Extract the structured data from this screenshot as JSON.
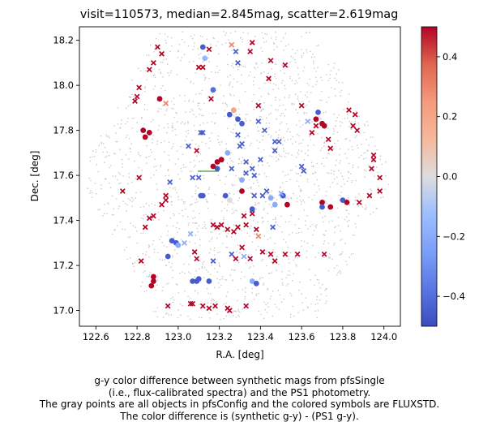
{
  "chart_data": {
    "type": "scatter",
    "title": "visit=110573, median=2.845mag, scatter=2.619mag",
    "xlabel": "R.A. [deg]",
    "ylabel": "Dec. [deg]",
    "xlim": [
      122.52,
      124.08
    ],
    "ylim": [
      16.93,
      18.26
    ],
    "xticks": [
      122.6,
      122.8,
      123.0,
      123.2,
      123.4,
      123.6,
      123.8,
      124.0
    ],
    "xtick_labels": [
      "122.6",
      "122.8",
      "123.0",
      "123.2",
      "123.4",
      "123.6",
      "123.8",
      "124.0"
    ],
    "yticks": [
      17.0,
      17.2,
      17.4,
      17.6,
      17.8,
      18.0,
      18.2
    ],
    "ytick_labels": [
      "17.0",
      "17.2",
      "17.4",
      "17.6",
      "17.8",
      "18.0",
      "18.2"
    ],
    "grid": false,
    "colorbar": {
      "cmap": "coolwarm",
      "vmin": -0.5,
      "vmax": 0.5,
      "ticks": [
        -0.4,
        -0.2,
        0.0,
        0.2,
        0.4
      ],
      "tick_labels": [
        "−0.4",
        "−0.2",
        "0.0",
        "0.2",
        "0.4"
      ]
    },
    "background_points": {
      "description_shown": "gray points = all objects in pfsConfig",
      "color": "#c8c8c8",
      "field_center": [
        123.3,
        17.6
      ],
      "field_hex_vertices": [
        [
          122.52,
          17.6
        ],
        [
          122.9,
          18.24
        ],
        [
          123.68,
          18.24
        ],
        [
          124.06,
          17.6
        ],
        [
          123.68,
          16.96
        ],
        [
          122.9,
          16.96
        ]
      ]
    },
    "series": [
      {
        "marker": "circle",
        "points": [
          [
            123.12,
            18.17,
            -0.45
          ],
          [
            123.13,
            18.12,
            -0.15
          ],
          [
            123.17,
            17.98,
            -0.4
          ],
          [
            123.25,
            17.87,
            -0.45
          ],
          [
            123.27,
            17.89,
            0.2
          ],
          [
            123.29,
            17.85,
            -0.45
          ],
          [
            123.31,
            17.83,
            -0.45
          ],
          [
            122.91,
            17.94,
            0.5
          ],
          [
            122.83,
            17.8,
            0.5
          ],
          [
            122.86,
            17.79,
            0.5
          ],
          [
            122.84,
            17.77,
            0.5
          ],
          [
            123.21,
            17.67,
            0.5
          ],
          [
            123.24,
            17.7,
            -0.2
          ],
          [
            123.19,
            17.66,
            0.5
          ],
          [
            123.19,
            17.63,
            -0.45
          ],
          [
            123.17,
            17.64,
            0.5
          ],
          [
            123.11,
            17.51,
            -0.45
          ],
          [
            123.12,
            17.51,
            -0.45
          ],
          [
            123.23,
            17.51,
            -0.45
          ],
          [
            123.25,
            17.49,
            0.0
          ],
          [
            123.31,
            17.58,
            -0.2
          ],
          [
            123.31,
            17.53,
            0.5
          ],
          [
            123.36,
            17.45,
            -0.45
          ],
          [
            123.45,
            17.5,
            -0.2
          ],
          [
            123.47,
            17.47,
            -0.2
          ],
          [
            123.51,
            17.51,
            -0.45
          ],
          [
            123.53,
            17.47,
            0.5
          ],
          [
            123.68,
            17.88,
            -0.45
          ],
          [
            123.67,
            17.85,
            0.5
          ],
          [
            123.7,
            17.83,
            0.5
          ],
          [
            123.71,
            17.82,
            0.5
          ],
          [
            123.7,
            17.48,
            0.5
          ],
          [
            123.7,
            17.46,
            -0.45
          ],
          [
            123.74,
            17.46,
            0.5
          ],
          [
            123.8,
            17.49,
            -0.45
          ],
          [
            123.82,
            17.48,
            0.5
          ],
          [
            122.97,
            17.31,
            -0.45
          ],
          [
            122.99,
            17.3,
            -0.45
          ],
          [
            122.95,
            17.24,
            -0.45
          ],
          [
            123.0,
            17.29,
            -0.2
          ],
          [
            122.88,
            17.13,
            0.5
          ],
          [
            122.87,
            17.11,
            0.5
          ],
          [
            122.88,
            17.15,
            0.5
          ],
          [
            123.07,
            17.13,
            -0.45
          ],
          [
            123.09,
            17.13,
            -0.45
          ],
          [
            123.1,
            17.14,
            -0.45
          ],
          [
            123.15,
            17.13,
            -0.45
          ],
          [
            123.36,
            17.13,
            -0.2
          ],
          [
            123.38,
            17.12,
            -0.45
          ]
        ]
      },
      {
        "marker": "x",
        "points": [
          [
            123.26,
            18.18,
            0.3
          ],
          [
            123.28,
            18.15,
            -0.45
          ],
          [
            123.29,
            18.1,
            -0.45
          ],
          [
            123.15,
            18.16,
            0.5
          ],
          [
            122.9,
            18.17,
            0.5
          ],
          [
            122.92,
            18.14,
            0.5
          ],
          [
            122.88,
            18.1,
            0.5
          ],
          [
            122.86,
            18.07,
            0.5
          ],
          [
            122.81,
            17.99,
            0.5
          ],
          [
            122.8,
            17.95,
            0.5
          ],
          [
            122.79,
            17.93,
            0.5
          ],
          [
            122.94,
            17.92,
            0.3
          ],
          [
            123.1,
            18.08,
            0.5
          ],
          [
            123.12,
            18.08,
            0.5
          ],
          [
            123.16,
            17.94,
            0.5
          ],
          [
            123.11,
            17.79,
            -0.45
          ],
          [
            123.12,
            17.79,
            -0.45
          ],
          [
            123.09,
            17.71,
            0.5
          ],
          [
            123.05,
            17.73,
            -0.45
          ],
          [
            123.1,
            17.59,
            -0.45
          ],
          [
            123.07,
            17.59,
            -0.45
          ],
          [
            122.96,
            17.57,
            -0.45
          ],
          [
            122.81,
            17.59,
            0.5
          ],
          [
            122.73,
            17.53,
            0.5
          ],
          [
            123.36,
            18.19,
            0.5
          ],
          [
            123.35,
            18.15,
            0.5
          ],
          [
            123.45,
            18.11,
            0.5
          ],
          [
            123.52,
            18.09,
            0.5
          ],
          [
            123.44,
            18.03,
            0.5
          ],
          [
            123.39,
            17.91,
            0.5
          ],
          [
            123.39,
            17.84,
            -0.45
          ],
          [
            123.42,
            17.8,
            -0.45
          ],
          [
            123.47,
            17.75,
            -0.45
          ],
          [
            123.49,
            17.75,
            -0.45
          ],
          [
            123.47,
            17.71,
            -0.45
          ],
          [
            123.4,
            17.67,
            -0.45
          ],
          [
            123.36,
            17.63,
            -0.45
          ],
          [
            123.37,
            17.6,
            -0.45
          ],
          [
            123.33,
            17.61,
            -0.45
          ],
          [
            123.26,
            17.63,
            -0.45
          ],
          [
            123.33,
            17.66,
            -0.45
          ],
          [
            123.31,
            17.74,
            -0.45
          ],
          [
            123.29,
            17.78,
            -0.45
          ],
          [
            123.3,
            17.73,
            -0.45
          ],
          [
            123.6,
            17.64,
            -0.45
          ],
          [
            123.61,
            17.62,
            -0.45
          ],
          [
            123.65,
            17.79,
            0.5
          ],
          [
            123.67,
            17.82,
            0.5
          ],
          [
            123.73,
            17.76,
            0.5
          ],
          [
            123.74,
            17.72,
            0.5
          ],
          [
            123.83,
            17.89,
            0.5
          ],
          [
            123.86,
            17.87,
            0.5
          ],
          [
            123.85,
            17.82,
            0.5
          ],
          [
            123.87,
            17.8,
            0.5
          ],
          [
            123.6,
            17.91,
            0.5
          ],
          [
            123.63,
            17.84,
            -0.2
          ],
          [
            123.95,
            17.69,
            0.5
          ],
          [
            123.95,
            17.67,
            0.5
          ],
          [
            123.94,
            17.63,
            0.5
          ],
          [
            123.98,
            17.59,
            0.5
          ],
          [
            123.98,
            17.53,
            0.5
          ],
          [
            123.93,
            17.51,
            0.5
          ],
          [
            123.88,
            17.48,
            0.5
          ],
          [
            123.5,
            17.52,
            -0.2
          ],
          [
            123.43,
            17.53,
            -0.45
          ],
          [
            123.37,
            17.51,
            -0.45
          ],
          [
            123.41,
            17.51,
            -0.45
          ],
          [
            123.36,
            17.43,
            0.5
          ],
          [
            123.32,
            17.42,
            0.5
          ],
          [
            123.33,
            17.38,
            0.5
          ],
          [
            123.38,
            17.36,
            0.5
          ],
          [
            123.39,
            17.33,
            0.3
          ],
          [
            123.24,
            17.36,
            0.5
          ],
          [
            123.21,
            17.38,
            0.5
          ],
          [
            123.17,
            17.38,
            0.5
          ],
          [
            123.19,
            17.37,
            0.5
          ],
          [
            123.29,
            17.37,
            0.5
          ],
          [
            123.27,
            17.35,
            0.5
          ],
          [
            123.46,
            17.37,
            -0.45
          ],
          [
            122.94,
            17.51,
            0.5
          ],
          [
            122.94,
            17.49,
            0.5
          ],
          [
            122.92,
            17.47,
            0.5
          ],
          [
            122.88,
            17.42,
            0.5
          ],
          [
            122.86,
            17.41,
            0.5
          ],
          [
            122.84,
            17.37,
            0.5
          ],
          [
            122.82,
            17.22,
            0.5
          ],
          [
            123.08,
            17.26,
            0.5
          ],
          [
            123.09,
            17.23,
            0.5
          ],
          [
            123.03,
            17.3,
            -0.2
          ],
          [
            123.06,
            17.34,
            -0.2
          ],
          [
            123.26,
            17.25,
            -0.45
          ],
          [
            123.28,
            17.23,
            0.5
          ],
          [
            123.32,
            17.24,
            -0.2
          ],
          [
            123.35,
            17.23,
            0.5
          ],
          [
            123.41,
            17.26,
            0.5
          ],
          [
            123.45,
            17.25,
            0.5
          ],
          [
            123.47,
            17.22,
            0.5
          ],
          [
            123.52,
            17.25,
            0.5
          ],
          [
            123.58,
            17.25,
            0.5
          ],
          [
            123.31,
            17.28,
            0.5
          ],
          [
            123.71,
            17.25,
            0.5
          ],
          [
            123.17,
            17.22,
            -0.45
          ],
          [
            122.95,
            17.02,
            0.5
          ],
          [
            123.06,
            17.03,
            0.5
          ],
          [
            123.07,
            17.03,
            0.5
          ],
          [
            123.12,
            17.02,
            0.5
          ],
          [
            123.15,
            17.01,
            0.5
          ],
          [
            123.18,
            17.02,
            0.5
          ],
          [
            123.24,
            17.01,
            0.5
          ],
          [
            123.25,
            17.0,
            0.5
          ],
          [
            123.33,
            17.02,
            0.5
          ]
        ]
      }
    ]
  },
  "caption": {
    "lines": [
      "g-y color difference between synthetic mags from pfsSingle",
      "(i.e., flux-calibrated spectra) and the PS1 photometry.",
      "The gray points are all objects in pfsConfig and the colored symbols are FLUXSTD.",
      "The color difference is (synthetic g-y) - (PS1 g-y)."
    ]
  }
}
